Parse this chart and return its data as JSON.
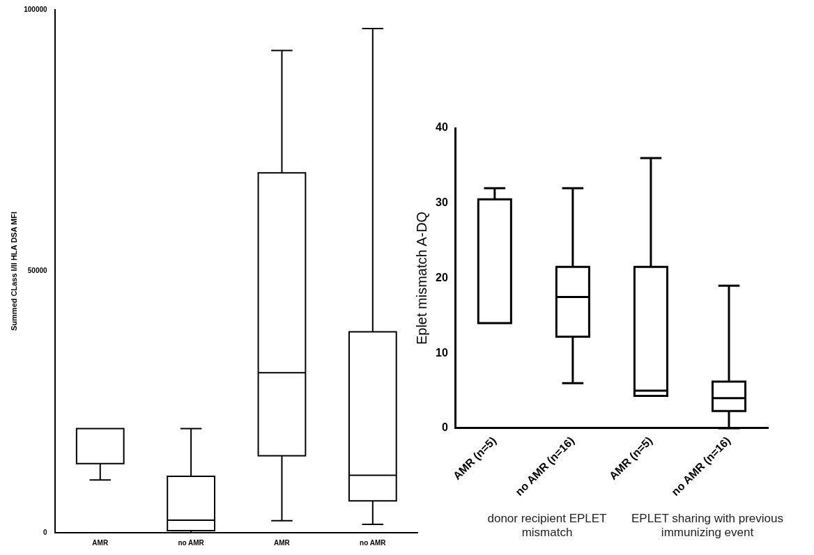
{
  "chart_data": [
    {
      "type": "box",
      "ylabel": "Summed CLass I/II HLA DSA MFI",
      "categories": [
        "AMR",
        "no AMR",
        "AMR",
        "no AMR"
      ],
      "boxes": [
        {
          "low": 10100,
          "q1": 13200,
          "median": 19900,
          "q3": 19900,
          "high": 19900
        },
        {
          "low": 0,
          "q1": 400,
          "median": 2400,
          "q3": 10800,
          "high": 19900
        },
        {
          "low": 2300,
          "q1": 14700,
          "median": 30600,
          "q3": 68800,
          "high": 92200
        },
        {
          "low": 1600,
          "q1": 6100,
          "median": 11000,
          "q3": 38400,
          "high": 96400
        }
      ],
      "ylim": [
        0,
        100000
      ],
      "yticks": [
        0,
        50000,
        100000
      ]
    },
    {
      "type": "box",
      "ylabel": "Eplet mismatch A-DQ",
      "categories": [
        "AMR (n=5)",
        "no AMR (n=16)",
        "AMR (n=5)",
        "no AMR (n=16)"
      ],
      "boxes": [
        {
          "low": 14,
          "q1": 14,
          "median": 14,
          "q3": 30.5,
          "high": 32
        },
        {
          "low": 6,
          "q1": 12.2,
          "median": 17.5,
          "q3": 21.5,
          "high": 32
        },
        {
          "low": 4.3,
          "q1": 4.3,
          "median": 5,
          "q3": 21.5,
          "high": 36
        },
        {
          "low": 0,
          "q1": 2.3,
          "median": 4,
          "q3": 6.2,
          "high": 19
        }
      ],
      "ylim": [
        0,
        40
      ],
      "yticks": [
        0,
        10,
        20,
        30,
        40
      ],
      "annotations": [
        "donor recipient EPLET mismatch",
        "EPLET sharing with previous immunizing event"
      ]
    }
  ]
}
